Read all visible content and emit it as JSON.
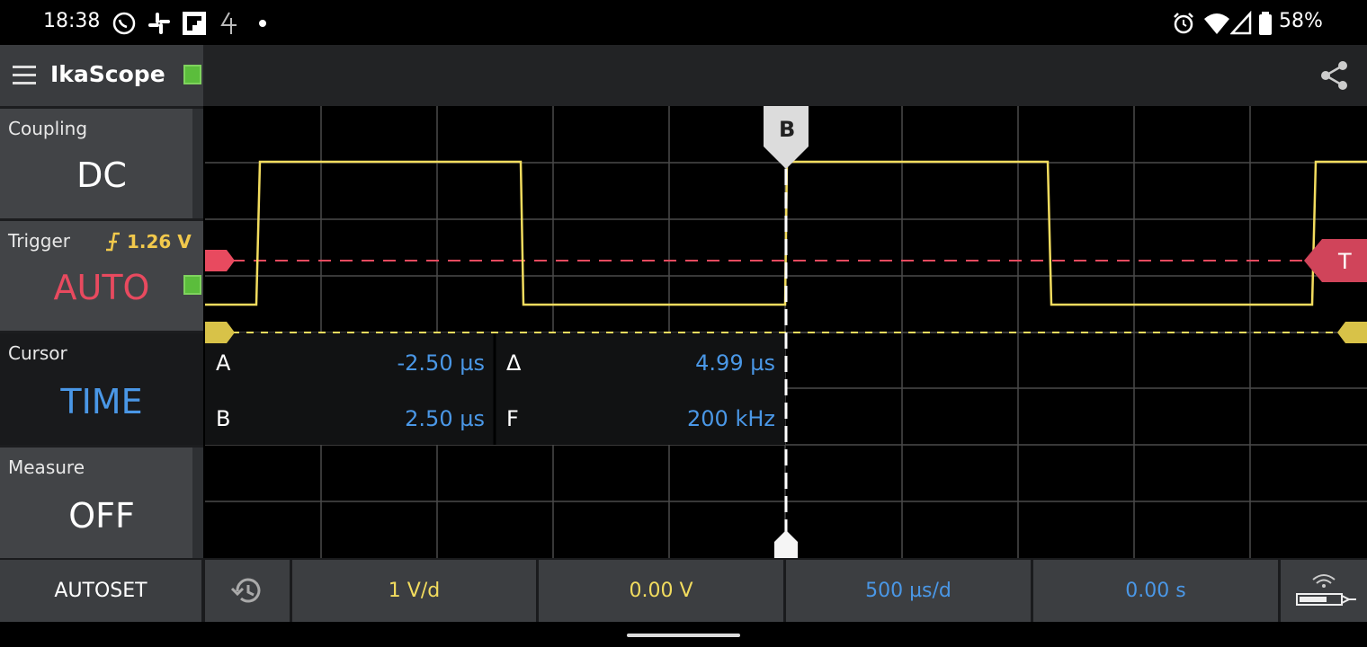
{
  "status_bar": {
    "time": "18:38",
    "battery": "58%",
    "icons": [
      "whatsapp-icon",
      "slack-icon",
      "flipboard-icon",
      "channel4-icon",
      "notification-dot-icon",
      "alarm-icon",
      "wifi-icon",
      "signal-icon",
      "battery-icon"
    ]
  },
  "app": {
    "title": "IkaScope",
    "menu_icon": "hamburger-menu-icon",
    "share_icon": "share-icon",
    "connection_color": "#5bbd3c"
  },
  "panel": {
    "coupling": {
      "label": "Coupling",
      "value": "DC"
    },
    "trigger": {
      "label": "Trigger",
      "level": "1.26 V",
      "mode": "AUTO",
      "edge_icon": "rising-edge-icon",
      "mode_color": "#e84a5f"
    },
    "cursor": {
      "label": "Cursor",
      "value": "TIME",
      "value_color": "#4a97e6"
    },
    "measure": {
      "label": "Measure",
      "value": "OFF"
    }
  },
  "cursors": {
    "marker_b": "B",
    "trigger_marker": "T",
    "a_label": "A",
    "a_value": "-2.50 µs",
    "delta_label": "Δ",
    "delta_value": "4.99 µs",
    "b_label": "B",
    "b_value": "2.50 µs",
    "f_label": "F",
    "f_value": "200 kHz"
  },
  "bottom": {
    "autoset": "AUTOSET",
    "history_icon": "history-icon",
    "volts_div": "1 V/d",
    "offset": "0.00 V",
    "time_div": "500 µs/d",
    "time_offset": "0.00 s",
    "probe_icon": "probe-icon"
  },
  "colors": {
    "trace": "#f2dc5e",
    "trigger": "#e84a5f",
    "accent_blue": "#4a97e6",
    "grid": "#4a4a4a"
  }
}
